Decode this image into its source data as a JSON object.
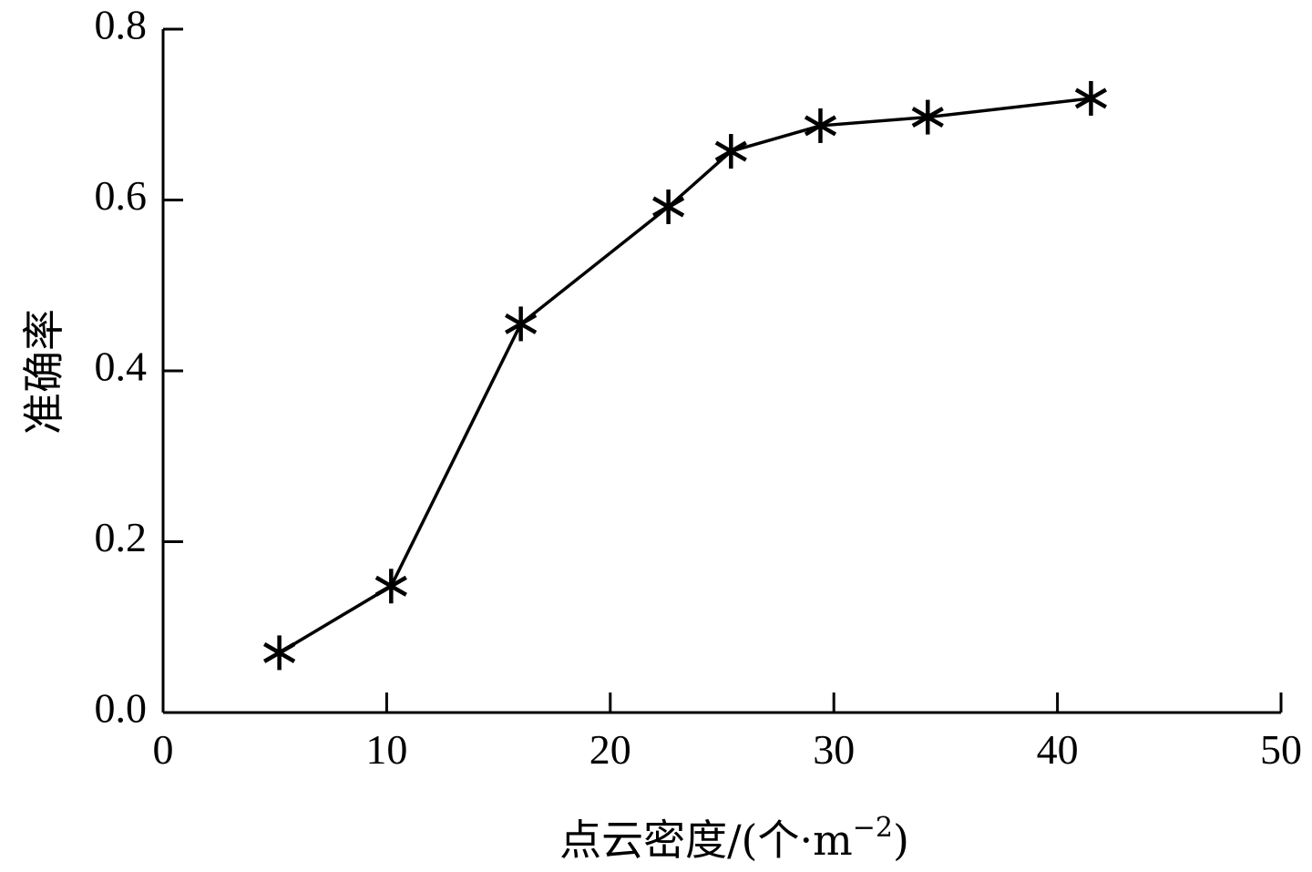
{
  "chart_data": {
    "type": "line",
    "title": "",
    "xlabel": "点云密度/(个·m",
    "xlabel_superscript": "−2",
    "xlabel_suffix": ")",
    "ylabel": "准确率",
    "xlim": [
      0,
      50
    ],
    "ylim": [
      0,
      0.8
    ],
    "x_ticks": [
      0,
      10,
      20,
      30,
      40,
      50
    ],
    "x_tick_labels": [
      "0",
      "10",
      "20",
      "30",
      "40",
      "50"
    ],
    "y_ticks": [
      0.0,
      0.2,
      0.4,
      0.6,
      0.8
    ],
    "y_tick_labels": [
      "0.0",
      "0.2",
      "0.4",
      "0.6",
      "0.8"
    ],
    "grid": false,
    "legend": "none",
    "marker": "asterisk",
    "color": "#000000",
    "series": [
      {
        "x": [
          5.2,
          10.2,
          16.0,
          22.6,
          25.4,
          29.4,
          34.2,
          41.5
        ],
        "y": [
          0.07,
          0.148,
          0.455,
          0.592,
          0.657,
          0.687,
          0.697,
          0.719
        ]
      }
    ]
  }
}
